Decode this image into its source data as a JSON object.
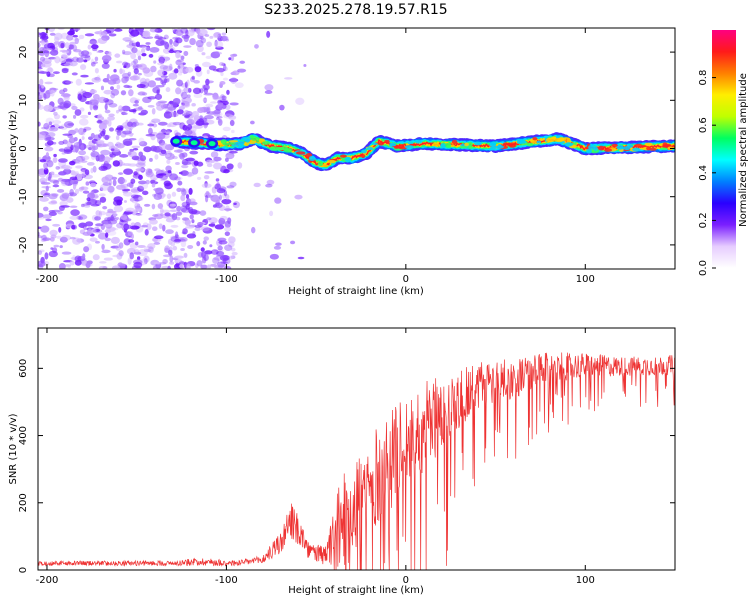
{
  "title": "S233.2025.278.19.57.R15",
  "chart_data": [
    {
      "type": "heatmap",
      "xlabel": "Height of straight line (km)",
      "ylabel": "Frequency (Hz)",
      "xlim": [
        -205,
        150
      ],
      "ylim": [
        -25,
        25
      ],
      "xticks": [
        -200,
        -100,
        0,
        100
      ],
      "yticks": [
        -20,
        -10,
        0,
        10,
        20
      ],
      "colorbar": {
        "label": "Normalized spectral amplitude",
        "range": [
          0,
          1
        ],
        "ticks": [
          0.0,
          0.2,
          0.4,
          0.6,
          0.8
        ],
        "colors": [
          "#ffffff",
          "#e6ccff",
          "#7a1fff",
          "#2a00ff",
          "#0080ff",
          "#00ffff",
          "#00ff60",
          "#c0ff00",
          "#ffee00",
          "#ff8000",
          "#ff1a1a",
          "#ff0080"
        ]
      },
      "signal_track": [
        {
          "x": -128,
          "f": 1.5
        },
        {
          "x": -105,
          "f": 0.8
        },
        {
          "x": -92,
          "f": 1.0
        },
        {
          "x": -85,
          "f": 2.0
        },
        {
          "x": -75,
          "f": 0.5
        },
        {
          "x": -65,
          "f": 0.0
        },
        {
          "x": -58,
          "f": -1.0
        },
        {
          "x": -50,
          "f": -3.0
        },
        {
          "x": -45,
          "f": -3.5
        },
        {
          "x": -38,
          "f": -2.0
        },
        {
          "x": -30,
          "f": -2.0
        },
        {
          "x": -22,
          "f": -1.0
        },
        {
          "x": -15,
          "f": 1.5
        },
        {
          "x": -5,
          "f": 0.5
        },
        {
          "x": 10,
          "f": 1.0
        },
        {
          "x": 50,
          "f": 0.5
        },
        {
          "x": 85,
          "f": 2.0
        },
        {
          "x": 100,
          "f": 0.0
        },
        {
          "x": 150,
          "f": 0.5
        }
      ]
    },
    {
      "type": "line",
      "xlabel": "Height of straight line (km)",
      "ylabel": "SNR (10 * v/v)",
      "xlim": [
        -205,
        150
      ],
      "ylim": [
        0,
        720
      ],
      "xticks": [
        -200,
        -100,
        0,
        100
      ],
      "yticks": [
        0,
        200,
        400,
        600
      ],
      "color": "#ee3333",
      "envelope": [
        {
          "x": -205,
          "mean": 20,
          "amp": 12
        },
        {
          "x": -130,
          "mean": 20,
          "amp": 12
        },
        {
          "x": -115,
          "mean": 25,
          "amp": 20
        },
        {
          "x": -95,
          "mean": 20,
          "amp": 15
        },
        {
          "x": -80,
          "mean": 30,
          "amp": 20
        },
        {
          "x": -70,
          "mean": 80,
          "amp": 60
        },
        {
          "x": -62,
          "mean": 150,
          "amp": 120
        },
        {
          "x": -55,
          "mean": 60,
          "amp": 40
        },
        {
          "x": -45,
          "mean": 40,
          "amp": 50
        },
        {
          "x": -35,
          "mean": 150,
          "amp": 250
        },
        {
          "x": -20,
          "mean": 250,
          "amp": 250
        },
        {
          "x": 0,
          "mean": 380,
          "amp": 240
        },
        {
          "x": 20,
          "mean": 470,
          "amp": 200
        },
        {
          "x": 40,
          "mean": 550,
          "amp": 120
        },
        {
          "x": 60,
          "mean": 570,
          "amp": 100
        },
        {
          "x": 80,
          "mean": 600,
          "amp": 80
        },
        {
          "x": 100,
          "mean": 610,
          "amp": 60
        },
        {
          "x": 120,
          "mean": 605,
          "amp": 50
        },
        {
          "x": 150,
          "mean": 610,
          "amp": 50
        }
      ]
    }
  ]
}
